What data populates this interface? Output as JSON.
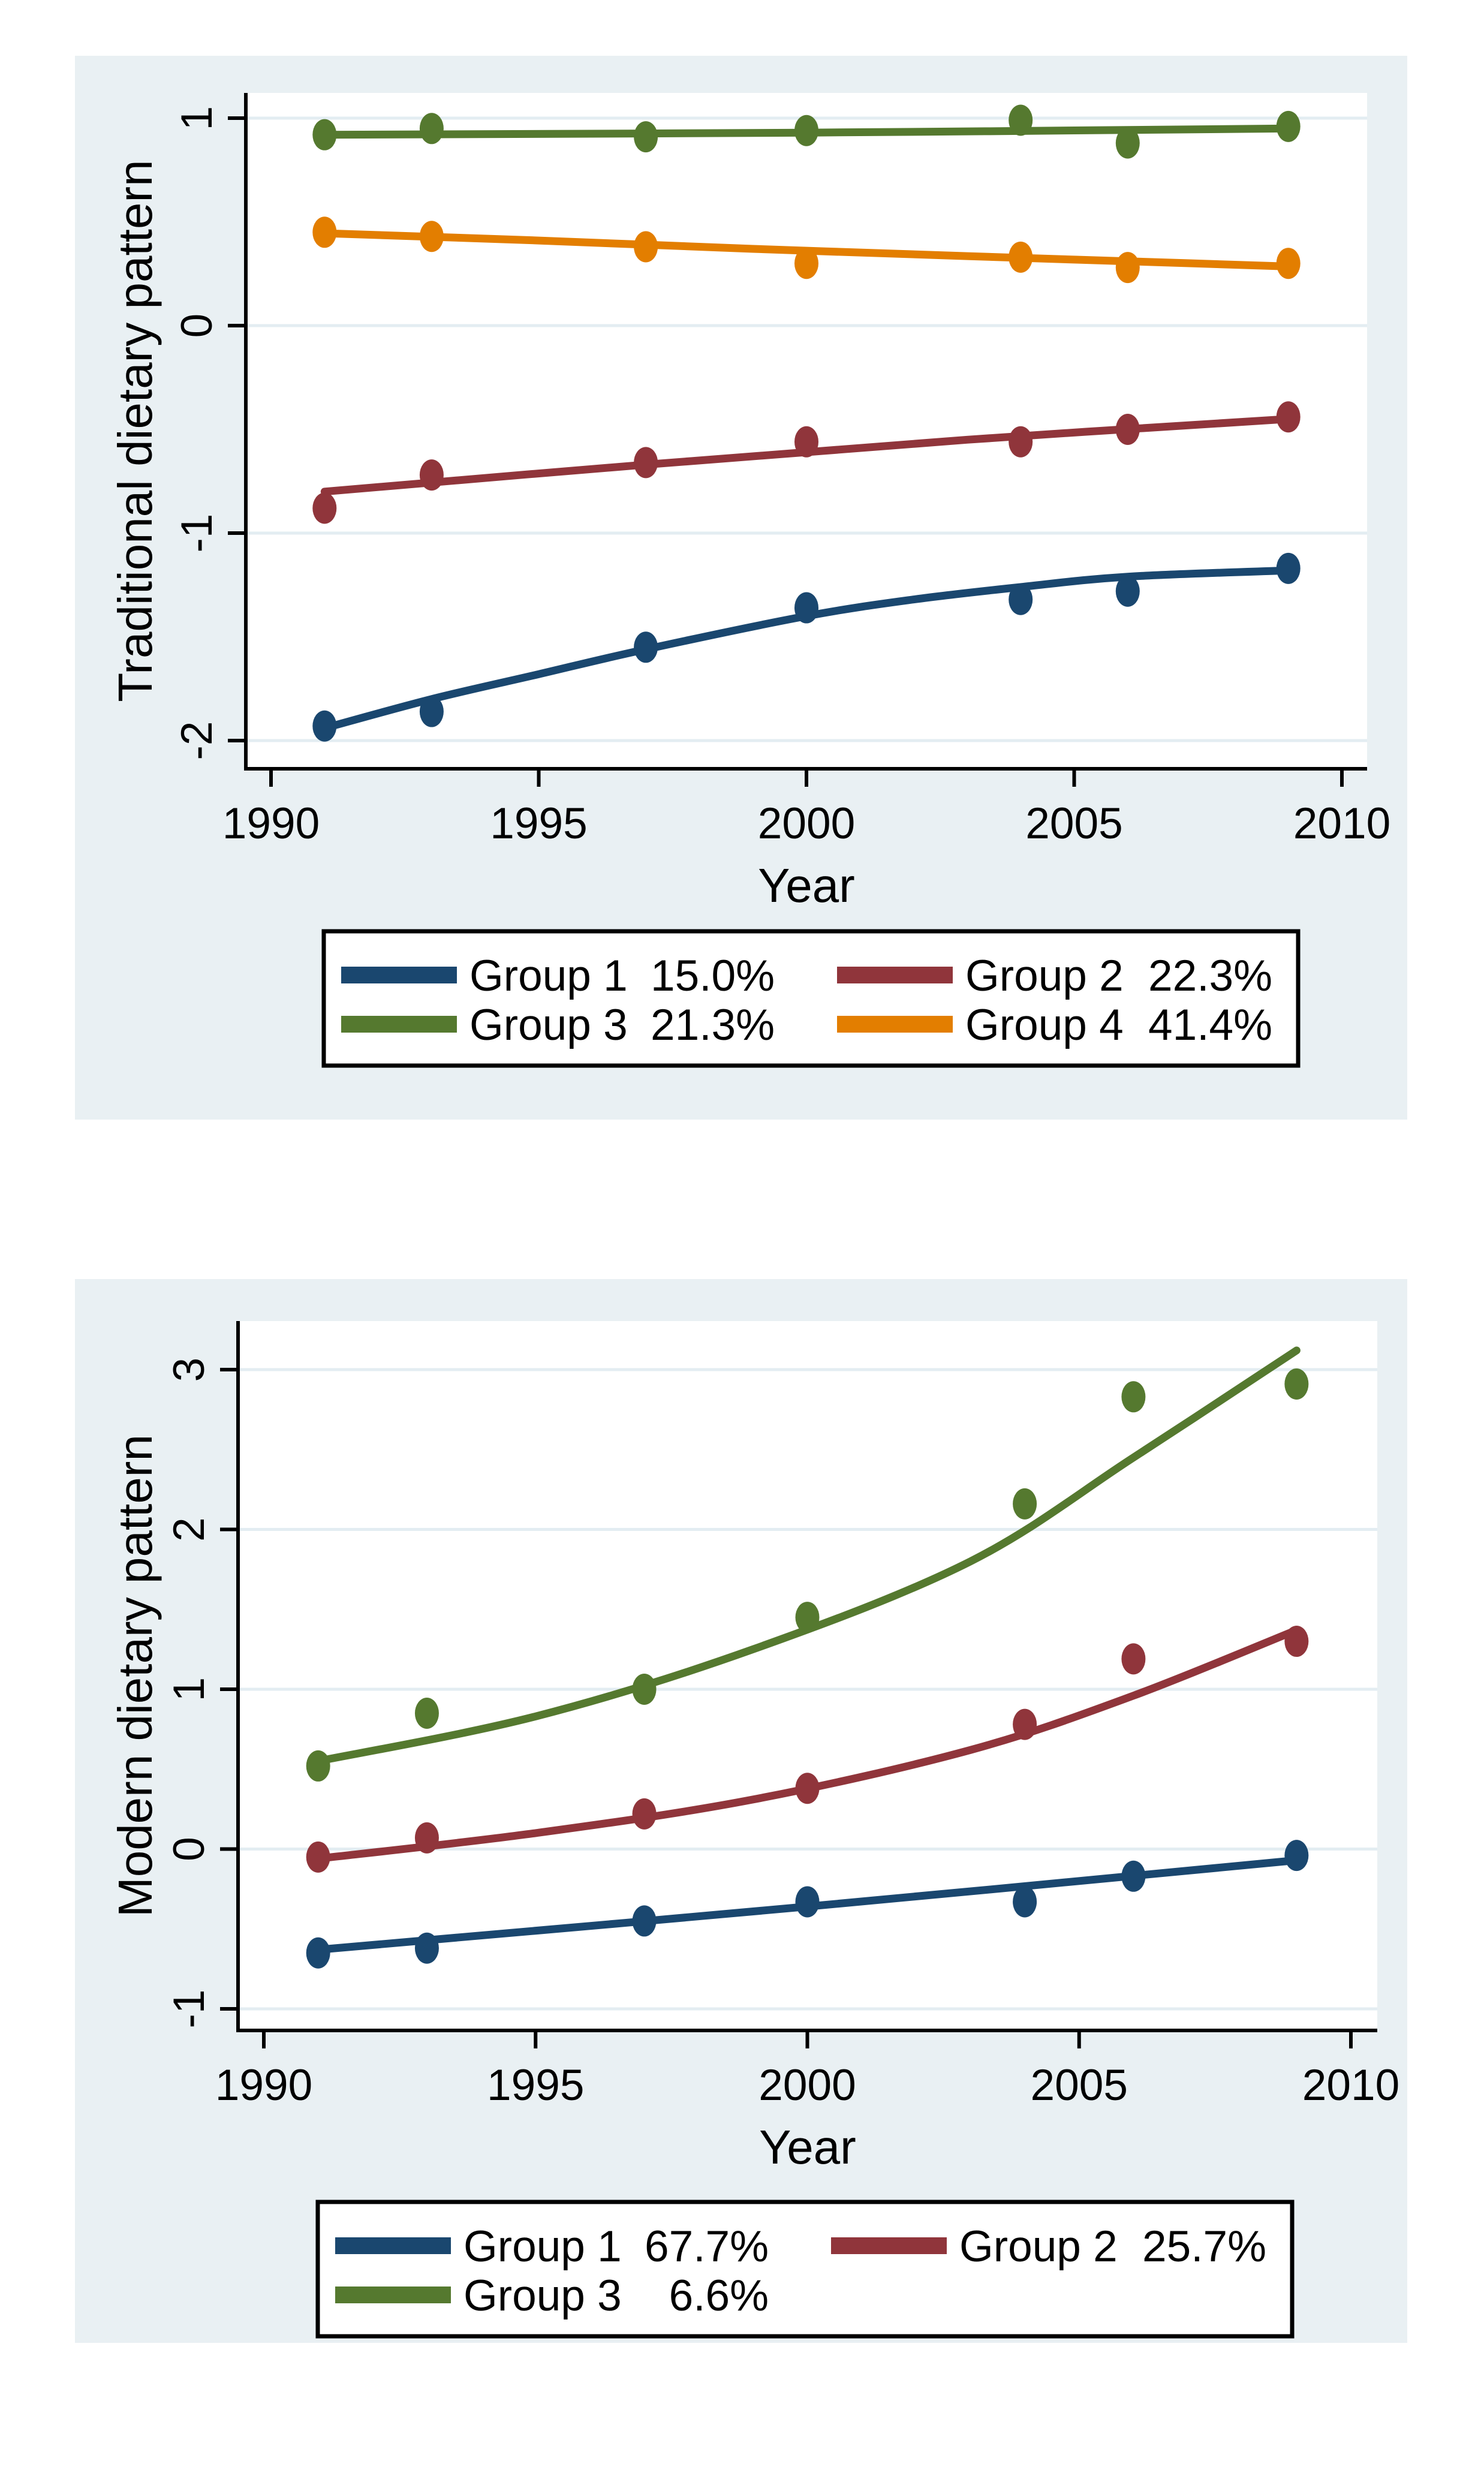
{
  "figure": {
    "description": "Group-based trajectory plots of dietary patterns by survey year",
    "background": "#FFFFFF"
  },
  "theme": {
    "panel_background": "#E9F0F3",
    "plot_background": "#FFFFFF",
    "grid_color": "#E3EDF2",
    "axis_color": "#000000",
    "text_color": "#000000",
    "legend_background": "#FFFFFF",
    "legend_border_color": "#000000",
    "colors": {
      "group1": "#1A476F",
      "group2": "#90353B",
      "group3": "#55792F",
      "group4": "#E37E00"
    }
  },
  "chart_data": [
    {
      "id": "traditional",
      "type": "scatter",
      "subtype": "trajectory-lines-with-markers",
      "title": "",
      "xlabel": "Year",
      "ylabel": "Traditional dietary pattern",
      "xlim": [
        1989.5,
        2010.5
      ],
      "ylim": [
        -2.14,
        1.12
      ],
      "xticks": [
        1990,
        1995,
        2000,
        2005,
        2010
      ],
      "yticks": [
        1,
        0,
        -1,
        -2
      ],
      "grid": true,
      "legend_position": "below-center",
      "x_years": [
        1991,
        1993,
        1997,
        2000,
        2004,
        2006,
        2009
      ],
      "series": [
        {
          "name": "Group 1",
          "share": "15.0%",
          "color_key": "group1",
          "marker_y": [
            -1.93,
            -1.86,
            -1.55,
            -1.36,
            -1.32,
            -1.28,
            -1.17
          ],
          "line": [
            [
              1991,
              -1.94
            ],
            [
              1993,
              -1.8
            ],
            [
              1995,
              -1.68
            ],
            [
              1997,
              -1.56
            ],
            [
              2000,
              -1.4
            ],
            [
              2002,
              -1.32
            ],
            [
              2004,
              -1.26
            ],
            [
              2006,
              -1.21
            ],
            [
              2009,
              -1.18
            ]
          ]
        },
        {
          "name": "Group 2",
          "share": "22.3%",
          "color_key": "group2",
          "marker_y": [
            -0.88,
            -0.72,
            -0.66,
            -0.56,
            -0.56,
            -0.5,
            -0.44
          ],
          "line": [
            [
              1991,
              -0.8
            ],
            [
              1997,
              -0.67
            ],
            [
              2003,
              -0.55
            ],
            [
              2009,
              -0.45
            ]
          ]
        },
        {
          "name": "Group 3",
          "share": "21.3%",
          "color_key": "group3",
          "marker_y": [
            0.92,
            0.95,
            0.91,
            0.94,
            0.99,
            0.88,
            0.96
          ],
          "line": [
            [
              1991,
              0.92
            ],
            [
              2000,
              0.93
            ],
            [
              2009,
              0.95
            ]
          ]
        },
        {
          "name": "Group 4",
          "share": "41.4%",
          "color_key": "group4",
          "marker_y": [
            0.45,
            0.43,
            0.38,
            0.3,
            0.33,
            0.28,
            0.3
          ],
          "line": [
            [
              1991,
              0.445
            ],
            [
              1995,
              0.41
            ],
            [
              1999,
              0.37
            ],
            [
              2003,
              0.335
            ],
            [
              2006,
              0.31
            ],
            [
              2009,
              0.285
            ]
          ]
        }
      ],
      "legend_rows": [
        [
          0,
          1
        ],
        [
          2,
          3
        ]
      ]
    },
    {
      "id": "modern",
      "type": "scatter",
      "subtype": "trajectory-lines-with-markers",
      "title": "",
      "xlabel": "Year",
      "ylabel": "Modern dietary pattern",
      "xlim": [
        1989.5,
        2010.5
      ],
      "ylim": [
        -1.19,
        3.32
      ],
      "xticks": [
        1990,
        1995,
        2000,
        2005,
        2010
      ],
      "yticks": [
        3,
        2,
        1,
        0,
        -1
      ],
      "grid": true,
      "legend_position": "below-center",
      "x_years": [
        1991,
        1993,
        1997,
        2000,
        2004,
        2006,
        2009
      ],
      "series": [
        {
          "name": "Group 1",
          "share": "67.7%",
          "color_key": "group1",
          "marker_y": [
            -0.65,
            -0.62,
            -0.45,
            -0.33,
            -0.33,
            -0.17,
            -0.04
          ],
          "line": [
            [
              1991,
              -0.63
            ],
            [
              2000,
              -0.36
            ],
            [
              2009,
              -0.07
            ]
          ]
        },
        {
          "name": "Group 2",
          "share": "25.7%",
          "color_key": "group2",
          "marker_y": [
            -0.05,
            0.07,
            0.22,
            0.38,
            0.78,
            1.19,
            1.3
          ],
          "line": [
            [
              1991,
              -0.06
            ],
            [
              1995,
              0.1
            ],
            [
              1999,
              0.31
            ],
            [
              2003,
              0.62
            ],
            [
              2006,
              0.96
            ],
            [
              2009,
              1.37
            ]
          ]
        },
        {
          "name": "Group 3",
          "share": "6.6%",
          "color_key": "group3",
          "marker_y": [
            0.52,
            0.85,
            1.0,
            1.45,
            2.16,
            2.83,
            2.91
          ],
          "line": [
            [
              1991,
              0.55
            ],
            [
              1995,
              0.83
            ],
            [
              1999,
              1.25
            ],
            [
              2003,
              1.8
            ],
            [
              2006,
              2.45
            ],
            [
              2009,
              3.12
            ]
          ]
        }
      ],
      "legend_rows": [
        [
          0,
          1
        ],
        [
          2
        ]
      ]
    }
  ]
}
